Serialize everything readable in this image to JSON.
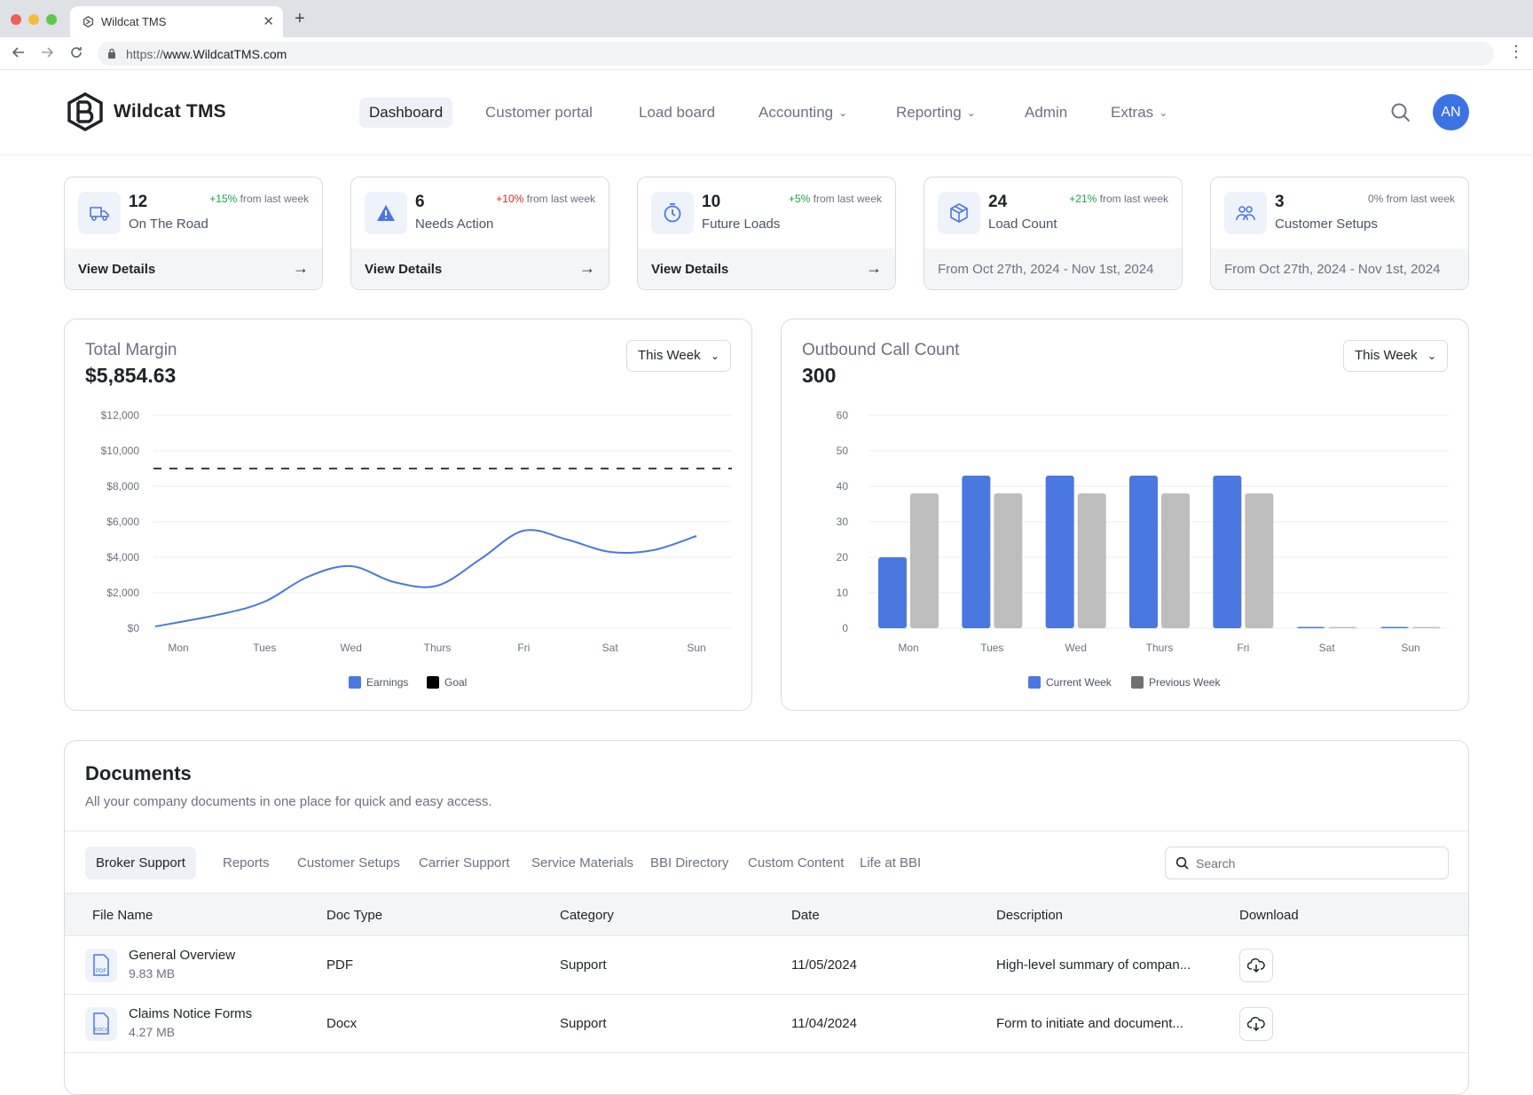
{
  "browser": {
    "tab_title": "Wildcat TMS",
    "url_prefix": "https://",
    "url_host": "www.WildcatTMS.com"
  },
  "header": {
    "brand": "Wildcat TMS",
    "nav": [
      "Dashboard",
      "Customer portal",
      "Load board",
      "Accounting",
      "Reporting",
      "Admin",
      "Extras"
    ],
    "avatar_initials": "AN"
  },
  "stats": [
    {
      "number": "12",
      "label": "On The Road",
      "change_pct": "+15%",
      "change_text": " from last week",
      "footer": "View Details",
      "icon": "truck-icon"
    },
    {
      "number": "6",
      "label": "Needs Action",
      "change_pct": "+10%",
      "change_text": " from last week",
      "footer": "View Details",
      "icon": "warning-icon"
    },
    {
      "number": "10",
      "label": "Future Loads",
      "change_pct": "+5%",
      "change_text": " from last week",
      "footer": "View Details",
      "icon": "clock-icon"
    },
    {
      "number": "24",
      "label": "Load Count",
      "change_pct": "+21%",
      "change_text": " from last week",
      "footer": "From Oct 27th, 2024 - Nov 1st, 2024",
      "icon": "box-icon"
    },
    {
      "number": "3",
      "label": "Customer Setups",
      "change_pct": "0%",
      "change_text": " from last week",
      "footer": "From Oct 27th, 2024 - Nov 1st, 2024",
      "icon": "users-icon"
    }
  ],
  "margin_card": {
    "title": "Total Margin",
    "value": "$5,854.63",
    "range": "This Week"
  },
  "calls_card": {
    "title": "Outbound Call Count",
    "value": "300",
    "range": "This Week"
  },
  "chart_data": [
    {
      "type": "line",
      "categories": [
        "Mon",
        "Tues",
        "Wed",
        "Thurs",
        "Fri",
        "Sat",
        "Sun"
      ],
      "yticks": [
        "$0",
        "$2,000",
        "$4,000",
        "$6,000",
        "$8,000",
        "$10,000",
        "$12,000"
      ],
      "ylim": [
        0,
        12000
      ],
      "goal": 9000,
      "x": [
        0,
        0.5,
        1,
        1.5,
        2,
        2.5,
        3,
        3.5,
        4,
        4.5,
        5,
        5.5,
        6
      ],
      "values": [
        100,
        800,
        1500,
        2900,
        3500,
        2600,
        2400,
        3900,
        5500,
        5000,
        4300,
        4400,
        5200
      ],
      "legend": [
        "Earnings",
        "Goal"
      ],
      "colors": {
        "earnings": "#4a78e0",
        "goal": "#000000"
      }
    },
    {
      "type": "bar",
      "categories": [
        "Mon",
        "Tues",
        "Wed",
        "Thurs",
        "Fri",
        "Sat",
        "Sun"
      ],
      "yticks": [
        "0",
        "10",
        "20",
        "30",
        "40",
        "50",
        "60"
      ],
      "ylim": [
        0,
        60
      ],
      "series": [
        {
          "name": "Current Week",
          "values": [
            20,
            43,
            43,
            43,
            43,
            0,
            0
          ],
          "color": "#4a78e0"
        },
        {
          "name": "Previous Week",
          "values": [
            38,
            38,
            38,
            38,
            38,
            0,
            0
          ],
          "color": "#bdbdbd"
        }
      ],
      "legend_colors": [
        "#4a78e0",
        "#707070"
      ]
    }
  ],
  "documents": {
    "title": "Documents",
    "subtitle": "All your company documents in one place for quick and easy access.",
    "tabs": [
      "Broker Support",
      "Reports",
      "Customer Setups",
      "Carrier Support",
      "Service Materials",
      "BBI Directory",
      "Custom Content",
      "Life at BBI"
    ],
    "search_placeholder": "Search",
    "columns": [
      "File Name",
      "Doc Type",
      "Category",
      "Date",
      "Description",
      "Download"
    ],
    "rows": [
      {
        "name": "General Overview",
        "size": "9.83 MB",
        "badge": "PDF",
        "type": "PDF",
        "category": "Support",
        "date": "11/05/2024",
        "description": "High-level summary of compan..."
      },
      {
        "name": "Claims Notice Forms",
        "size": "4.27 MB",
        "badge": "DOCX",
        "type": "Docx",
        "category": "Support",
        "date": "11/04/2024",
        "description": "Form to initiate and document..."
      }
    ]
  }
}
